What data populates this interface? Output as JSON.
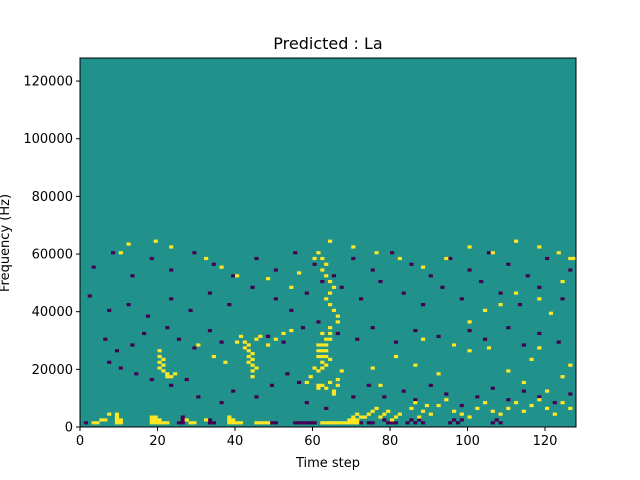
{
  "chart_data": {
    "type": "heatmap",
    "title": "Predicted : La",
    "xlabel": "Time step",
    "ylabel": "Frequency (Hz)",
    "xlim": [
      0,
      128
    ],
    "ylim": [
      0,
      128000
    ],
    "x_ticks": [
      0,
      20,
      40,
      60,
      80,
      100,
      120
    ],
    "x_tick_labels": [
      "0",
      "20",
      "40",
      "60",
      "80",
      "100",
      "120"
    ],
    "y_ticks": [
      0,
      20000,
      40000,
      60000,
      80000,
      100000,
      120000
    ],
    "y_tick_labels": [
      "0",
      "20000",
      "40000",
      "60000",
      "80000",
      "100000",
      "120000"
    ],
    "grid": false,
    "colormap": "viridis",
    "background_value": 0,
    "value_colors": {
      "-1": "#440154",
      "0": "#21918c",
      "1": "#fde725"
    },
    "cells_yellow": [
      [
        3,
        1
      ],
      [
        4,
        1
      ],
      [
        5,
        2
      ],
      [
        6,
        2
      ],
      [
        7,
        4
      ],
      [
        9,
        1
      ],
      [
        9,
        2
      ],
      [
        9,
        3
      ],
      [
        9,
        4
      ],
      [
        10,
        1
      ],
      [
        10,
        2
      ],
      [
        18,
        1
      ],
      [
        18,
        2
      ],
      [
        18,
        3
      ],
      [
        19,
        1
      ],
      [
        19,
        2
      ],
      [
        19,
        3
      ],
      [
        20,
        1
      ],
      [
        20,
        2
      ],
      [
        21,
        1
      ],
      [
        22,
        1
      ],
      [
        27,
        2
      ],
      [
        28,
        1
      ],
      [
        29,
        1
      ],
      [
        32,
        2
      ],
      [
        38,
        1
      ],
      [
        38,
        2
      ],
      [
        38,
        3
      ],
      [
        39,
        1
      ],
      [
        39,
        2
      ],
      [
        40,
        1
      ],
      [
        41,
        1
      ],
      [
        45,
        1
      ],
      [
        46,
        1
      ],
      [
        47,
        1
      ],
      [
        48,
        1
      ],
      [
        20,
        20
      ],
      [
        20,
        22
      ],
      [
        20,
        24
      ],
      [
        20,
        26
      ],
      [
        21,
        19
      ],
      [
        21,
        21
      ],
      [
        21,
        23
      ],
      [
        22,
        17
      ],
      [
        22,
        18
      ],
      [
        23,
        17
      ],
      [
        24,
        18
      ],
      [
        30,
        28
      ],
      [
        34,
        24
      ],
      [
        37,
        22
      ],
      [
        40,
        29
      ],
      [
        41,
        31
      ],
      [
        42,
        27
      ],
      [
        42,
        29
      ],
      [
        43,
        22
      ],
      [
        43,
        24
      ],
      [
        43,
        26
      ],
      [
        43,
        28
      ],
      [
        44,
        17
      ],
      [
        44,
        19
      ],
      [
        44,
        21
      ],
      [
        44,
        23
      ],
      [
        44,
        25
      ],
      [
        45,
        20
      ],
      [
        45,
        30
      ],
      [
        46,
        31
      ],
      [
        48,
        28
      ],
      [
        50,
        30
      ],
      [
        52,
        32
      ],
      [
        54,
        33
      ],
      [
        58,
        15
      ],
      [
        59,
        17
      ],
      [
        60,
        20
      ],
      [
        61,
        13
      ],
      [
        61,
        14
      ],
      [
        61,
        19
      ],
      [
        62,
        14
      ],
      [
        62,
        20
      ],
      [
        62,
        22
      ],
      [
        63,
        13
      ],
      [
        63,
        21
      ],
      [
        64,
        15
      ],
      [
        64,
        23
      ],
      [
        65,
        11
      ],
      [
        65,
        12
      ],
      [
        66,
        14
      ],
      [
        66,
        16
      ],
      [
        67,
        19
      ],
      [
        69,
        2
      ],
      [
        70,
        2
      ],
      [
        70,
        3
      ],
      [
        71,
        2
      ],
      [
        71,
        4
      ],
      [
        72,
        3
      ],
      [
        73,
        3
      ],
      [
        74,
        4
      ],
      [
        75,
        5
      ],
      [
        76,
        6
      ],
      [
        77,
        3
      ],
      [
        78,
        4
      ],
      [
        79,
        5
      ],
      [
        80,
        2
      ],
      [
        81,
        3
      ],
      [
        82,
        4
      ],
      [
        85,
        6
      ],
      [
        86,
        8
      ],
      [
        87,
        3
      ],
      [
        88,
        5
      ],
      [
        89,
        7
      ],
      [
        90,
        4
      ],
      [
        92,
        7
      ],
      [
        94,
        9
      ],
      [
        96,
        5
      ],
      [
        98,
        4
      ],
      [
        100,
        3
      ],
      [
        102,
        6
      ],
      [
        104,
        8
      ],
      [
        106,
        5
      ],
      [
        108,
        4
      ],
      [
        110,
        6
      ],
      [
        112,
        8
      ],
      [
        114,
        5
      ],
      [
        116,
        7
      ],
      [
        118,
        9
      ],
      [
        120,
        6
      ],
      [
        122,
        4
      ],
      [
        124,
        8
      ],
      [
        126,
        6
      ],
      [
        62,
        1
      ],
      [
        63,
        1
      ],
      [
        64,
        1
      ],
      [
        65,
        1
      ],
      [
        66,
        1
      ],
      [
        67,
        1
      ],
      [
        68,
        1
      ],
      [
        69,
        1
      ],
      [
        70,
        1
      ],
      [
        71,
        1
      ],
      [
        61,
        24
      ],
      [
        62,
        24
      ],
      [
        63,
        24
      ],
      [
        61,
        26
      ],
      [
        62,
        26
      ],
      [
        63,
        26
      ],
      [
        61,
        28
      ],
      [
        62,
        28
      ],
      [
        63,
        28
      ],
      [
        63,
        30
      ],
      [
        64,
        30
      ],
      [
        64,
        32
      ],
      [
        62,
        32
      ],
      [
        64,
        34
      ],
      [
        66,
        36
      ],
      [
        66,
        38
      ],
      [
        65,
        40
      ],
      [
        64,
        42
      ],
      [
        63,
        44
      ],
      [
        64,
        46
      ],
      [
        65,
        48
      ],
      [
        64,
        50
      ],
      [
        63,
        52
      ],
      [
        62,
        54
      ],
      [
        63,
        56
      ],
      [
        62,
        58
      ],
      [
        61,
        60
      ],
      [
        75,
        20
      ],
      [
        77,
        14
      ],
      [
        81,
        24
      ],
      [
        86,
        21
      ],
      [
        88,
        30
      ],
      [
        92,
        18
      ],
      [
        96,
        28
      ],
      [
        100,
        26
      ],
      [
        105,
        27
      ],
      [
        110,
        19
      ],
      [
        114,
        15
      ],
      [
        116,
        23
      ],
      [
        118,
        27
      ],
      [
        120,
        12
      ],
      [
        124,
        17
      ],
      [
        126,
        21
      ],
      [
        100,
        36
      ],
      [
        104,
        40
      ],
      [
        108,
        42
      ],
      [
        112,
        46
      ],
      [
        118,
        44
      ],
      [
        121,
        39
      ],
      [
        124,
        50
      ],
      [
        126,
        58
      ],
      [
        10,
        60
      ],
      [
        12,
        63
      ],
      [
        19,
        64
      ],
      [
        23,
        62
      ],
      [
        32,
        58
      ],
      [
        36,
        55
      ],
      [
        40,
        52
      ],
      [
        48,
        51
      ],
      [
        54,
        48
      ],
      [
        56,
        53
      ],
      [
        60,
        58
      ],
      [
        64,
        64
      ],
      [
        70,
        62
      ],
      [
        76,
        60
      ],
      [
        82,
        58
      ],
      [
        88,
        55
      ],
      [
        94,
        58
      ],
      [
        100,
        62
      ],
      [
        106,
        60
      ],
      [
        112,
        64
      ],
      [
        118,
        62
      ],
      [
        123,
        60
      ],
      [
        127,
        58
      ]
    ],
    "cells_purple": [
      [
        1,
        1
      ],
      [
        25,
        1
      ],
      [
        26,
        1
      ],
      [
        26,
        2
      ],
      [
        26,
        3
      ],
      [
        33,
        1
      ],
      [
        33,
        2
      ],
      [
        34,
        1
      ],
      [
        49,
        1
      ],
      [
        50,
        1
      ],
      [
        55,
        1
      ],
      [
        56,
        1
      ],
      [
        57,
        1
      ],
      [
        58,
        1
      ],
      [
        59,
        1
      ],
      [
        60,
        1
      ],
      [
        72,
        1
      ],
      [
        74,
        1
      ],
      [
        75,
        1
      ],
      [
        78,
        2
      ],
      [
        79,
        1
      ],
      [
        80,
        1
      ],
      [
        81,
        1
      ],
      [
        84,
        1
      ],
      [
        85,
        2
      ],
      [
        86,
        1
      ],
      [
        87,
        2
      ],
      [
        88,
        1
      ],
      [
        95,
        1
      ],
      [
        96,
        2
      ],
      [
        97,
        1
      ],
      [
        98,
        2
      ],
      [
        106,
        1
      ],
      [
        107,
        2
      ],
      [
        108,
        1
      ],
      [
        7,
        22
      ],
      [
        10,
        20
      ],
      [
        14,
        18
      ],
      [
        18,
        16
      ],
      [
        23,
        14
      ],
      [
        27,
        16
      ],
      [
        30,
        10
      ],
      [
        36,
        8
      ],
      [
        39,
        12
      ],
      [
        45,
        10
      ],
      [
        49,
        14
      ],
      [
        53,
        18
      ],
      [
        56,
        15
      ],
      [
        58,
        8
      ],
      [
        63,
        6
      ],
      [
        70,
        10
      ],
      [
        74,
        14
      ],
      [
        78,
        10
      ],
      [
        83,
        12
      ],
      [
        86,
        9
      ],
      [
        90,
        14
      ],
      [
        94,
        11
      ],
      [
        98,
        7
      ],
      [
        102,
        10
      ],
      [
        106,
        13
      ],
      [
        110,
        9
      ],
      [
        114,
        12
      ],
      [
        118,
        10
      ],
      [
        122,
        8
      ],
      [
        126,
        11
      ],
      [
        6,
        30
      ],
      [
        9,
        26
      ],
      [
        13,
        28
      ],
      [
        16,
        32
      ],
      [
        22,
        34
      ],
      [
        25,
        30
      ],
      [
        29,
        27
      ],
      [
        33,
        33
      ],
      [
        36,
        29
      ],
      [
        42,
        27
      ],
      [
        48,
        31
      ],
      [
        52,
        29
      ],
      [
        57,
        34
      ],
      [
        61,
        36
      ],
      [
        66,
        32
      ],
      [
        71,
        30
      ],
      [
        75,
        34
      ],
      [
        81,
        29
      ],
      [
        86,
        33
      ],
      [
        92,
        31
      ],
      [
        96,
        28
      ],
      [
        100,
        33
      ],
      [
        104,
        30
      ],
      [
        110,
        34
      ],
      [
        114,
        28
      ],
      [
        118,
        32
      ],
      [
        123,
        29
      ],
      [
        2,
        45
      ],
      [
        7,
        40
      ],
      [
        12,
        42
      ],
      [
        17,
        38
      ],
      [
        23,
        44
      ],
      [
        28,
        40
      ],
      [
        33,
        46
      ],
      [
        38,
        42
      ],
      [
        44,
        48
      ],
      [
        50,
        44
      ],
      [
        54,
        40
      ],
      [
        58,
        46
      ],
      [
        62,
        50
      ],
      [
        67,
        48
      ],
      [
        72,
        44
      ],
      [
        77,
        50
      ],
      [
        83,
        46
      ],
      [
        88,
        42
      ],
      [
        93,
        48
      ],
      [
        98,
        44
      ],
      [
        103,
        50
      ],
      [
        108,
        46
      ],
      [
        113,
        42
      ],
      [
        118,
        48
      ],
      [
        124,
        44
      ],
      [
        3,
        55
      ],
      [
        8,
        60
      ],
      [
        13,
        52
      ],
      [
        18,
        58
      ],
      [
        23,
        54
      ],
      [
        29,
        60
      ],
      [
        34,
        56
      ],
      [
        39,
        52
      ],
      [
        45,
        58
      ],
      [
        50,
        54
      ],
      [
        55,
        60
      ],
      [
        60,
        56
      ],
      [
        65,
        52
      ],
      [
        70,
        58
      ],
      [
        75,
        54
      ],
      [
        80,
        60
      ],
      [
        85,
        56
      ],
      [
        90,
        52
      ],
      [
        95,
        58
      ],
      [
        100,
        54
      ],
      [
        105,
        60
      ],
      [
        110,
        56
      ],
      [
        115,
        52
      ],
      [
        120,
        58
      ],
      [
        126,
        54
      ]
    ]
  }
}
